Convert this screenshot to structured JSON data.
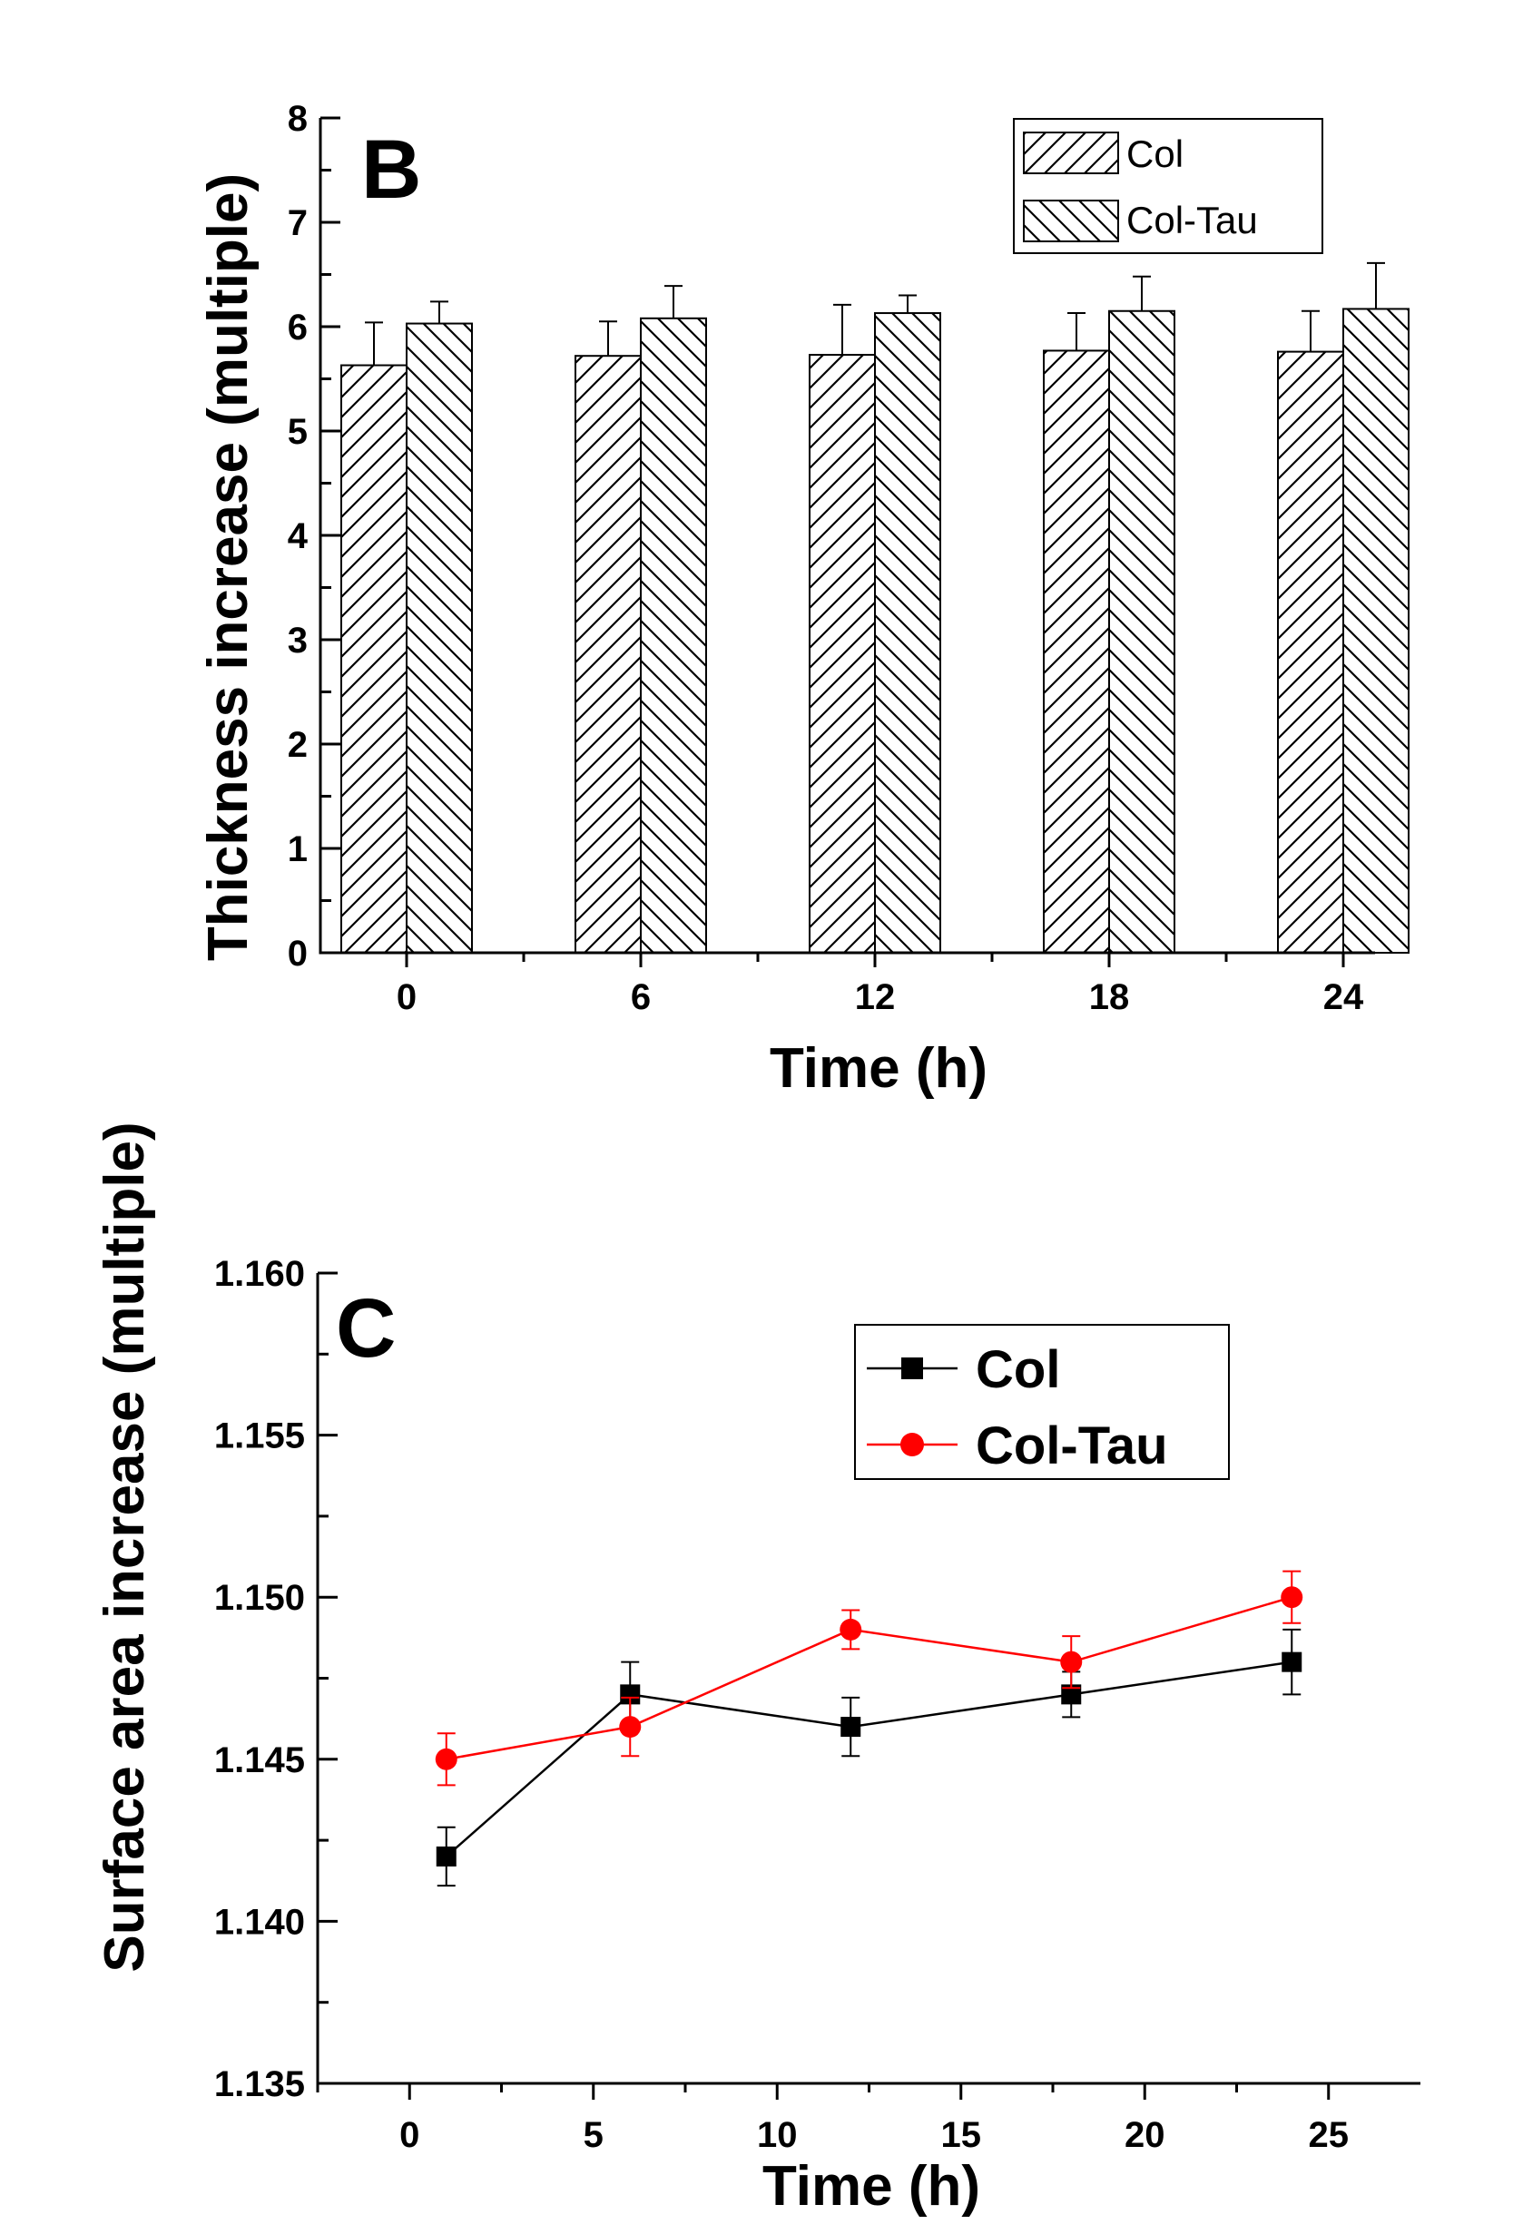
{
  "chart_data": [
    {
      "type": "bar",
      "panel_label": "B",
      "categories": [
        "0",
        "6",
        "12",
        "18",
        "24"
      ],
      "series": [
        {
          "name": "Col",
          "values": [
            5.63,
            5.72,
            5.73,
            5.77,
            5.76
          ],
          "errors": [
            0.41,
            0.33,
            0.48,
            0.36,
            0.39
          ],
          "pattern": "diagonal-forward"
        },
        {
          "name": "Col-Tau",
          "values": [
            6.03,
            6.08,
            6.13,
            6.15,
            6.17
          ],
          "errors": [
            0.21,
            0.31,
            0.17,
            0.33,
            0.44
          ],
          "pattern": "diagonal-backward"
        }
      ],
      "xlabel": "Time (h)",
      "ylabel": "Thickness increase (multiple)",
      "ylim": [
        0,
        8
      ],
      "yticks": [
        "0",
        "1",
        "2",
        "3",
        "4",
        "5",
        "6",
        "7",
        "8"
      ],
      "legend_position": "top-right"
    },
    {
      "type": "line",
      "panel_label": "C",
      "series": [
        {
          "name": "Col",
          "color": "#000000",
          "marker": "square",
          "x": [
            1,
            6,
            12,
            18,
            24
          ],
          "y": [
            1.142,
            1.147,
            1.146,
            1.147,
            1.148
          ],
          "errors": [
            0.0009,
            0.001,
            0.0009,
            0.0007,
            0.001
          ]
        },
        {
          "name": "Col-Tau",
          "color": "#ff0000",
          "marker": "circle",
          "x": [
            1,
            6,
            12,
            18,
            24
          ],
          "y": [
            1.145,
            1.146,
            1.149,
            1.148,
            1.15
          ],
          "errors": [
            0.0008,
            0.0009,
            0.0006,
            0.0008,
            0.0008
          ]
        }
      ],
      "xlabel": "Time (h)",
      "ylabel": "Surface area increase (multiple)",
      "xlim": [
        -2.5,
        27.5
      ],
      "ylim": [
        1.135,
        1.16
      ],
      "xticks": [
        "0",
        "5",
        "10",
        "15",
        "20",
        "25"
      ],
      "yticks": [
        "1.135",
        "1.140",
        "1.145",
        "1.150",
        "1.155",
        "1.160"
      ],
      "legend_position": "top-right"
    }
  ]
}
